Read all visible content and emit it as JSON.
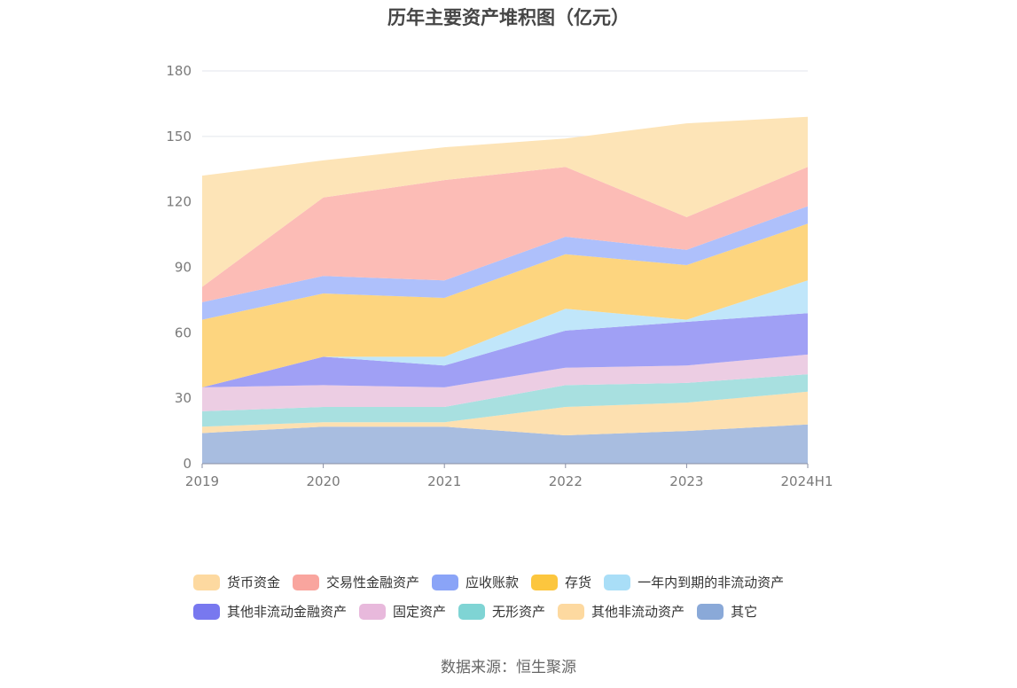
{
  "chart_data": {
    "type": "area",
    "stacked": true,
    "title": "历年主要资产堆积图（亿元）",
    "categories": [
      "2019",
      "2020",
      "2021",
      "2022",
      "2023",
      "2024H1"
    ],
    "ylim": [
      0,
      180
    ],
    "yticks": [
      0,
      30,
      60,
      90,
      120,
      150,
      180
    ],
    "grid": true,
    "legend_position": "bottom",
    "series": [
      {
        "name": "其它",
        "color": "#a8bde0",
        "values": [
          14,
          17,
          17,
          13,
          15,
          18
        ]
      },
      {
        "name": "其他非流动资产",
        "color": "#fde0b0",
        "values": [
          3,
          2,
          2,
          13,
          13,
          15
        ]
      },
      {
        "name": "无形资产",
        "color": "#a8e0e0",
        "values": [
          7,
          7,
          7,
          10,
          9,
          8
        ]
      },
      {
        "name": "固定资产",
        "color": "#eccde3",
        "values": [
          11,
          10,
          9,
          8,
          8,
          9
        ]
      },
      {
        "name": "其他非流动金融资产",
        "color": "#a0a0f5",
        "values": [
          0,
          13,
          10,
          17,
          20,
          19
        ]
      },
      {
        "name": "一年内到期的非流动资产",
        "color": "#c0e6fa",
        "values": [
          0,
          0,
          4,
          10,
          1,
          15
        ]
      },
      {
        "name": "存货",
        "color": "#fdd57f",
        "values": [
          31,
          29,
          27,
          25,
          25,
          26
        ]
      },
      {
        "name": "应收账款",
        "color": "#aec0fb",
        "values": [
          8,
          8,
          8,
          8,
          7,
          8
        ]
      },
      {
        "name": "交易性金融资产",
        "color": "#fcbcb6",
        "values": [
          7,
          36,
          46,
          32,
          15,
          18
        ]
      },
      {
        "name": "货币资金",
        "color": "#fde4b7",
        "values": [
          51,
          17,
          15,
          13,
          43,
          23
        ]
      }
    ]
  },
  "legend": {
    "row1": [
      {
        "label": "货币资金",
        "color": "#fdd9a0"
      },
      {
        "label": "交易性金融资产",
        "color": "#f9a59e"
      },
      {
        "label": "应收账款",
        "color": "#8aa4f7"
      },
      {
        "label": "存货",
        "color": "#fcc63e"
      },
      {
        "label": "一年内到期的非流动资产",
        "color": "#a9def7"
      }
    ],
    "row2": [
      {
        "label": "其他非流动金融资产",
        "color": "#7878ef"
      },
      {
        "label": "固定资产",
        "color": "#e8b9dc"
      },
      {
        "label": "无形资产",
        "color": "#7fd4d4"
      },
      {
        "label": "其他非流动资产",
        "color": "#fdd9a0"
      },
      {
        "label": "其它",
        "color": "#8aa9d8"
      }
    ]
  },
  "source": "数据来源：恒生聚源"
}
